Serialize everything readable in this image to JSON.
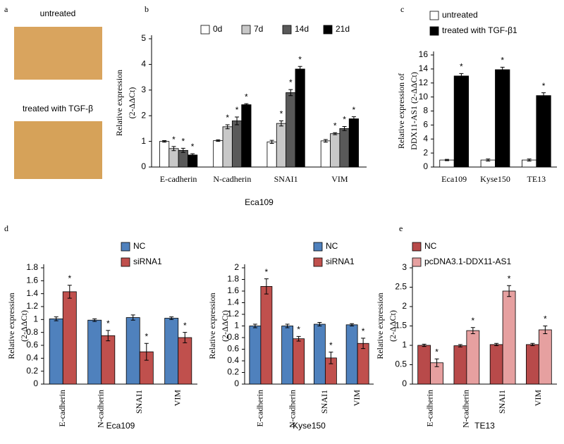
{
  "image_panel": {
    "label": "a",
    "captions": [
      "untreated",
      "treated with TGF-β"
    ]
  },
  "chart_data": [
    {
      "type": "bar",
      "label": "b",
      "ylabel": "Relative expression",
      "ylabel_unit": "(2-ΔΔCt)",
      "xlabel": "Eca109",
      "categories": [
        "E-cadherin",
        "N-cadherin",
        "SNAI1",
        "VIM"
      ],
      "series": [
        {
          "name": "0d",
          "color": "#ffffff",
          "values": [
            1.0,
            1.03,
            0.98,
            1.02
          ],
          "error": [
            0.03,
            0.03,
            0.06,
            0.05
          ]
        },
        {
          "name": "7d",
          "color": "#c8c8c8",
          "values": [
            0.72,
            1.57,
            1.7,
            1.3
          ],
          "error": [
            0.08,
            0.08,
            0.1,
            0.04
          ],
          "significance": [
            "*",
            "*",
            "*",
            "*"
          ]
        },
        {
          "name": "14d",
          "color": "#595959",
          "values": [
            0.65,
            1.8,
            2.9,
            1.5
          ],
          "error": [
            0.08,
            0.15,
            0.12,
            0.08
          ],
          "significance": [
            "*",
            "*",
            "*",
            "*"
          ]
        },
        {
          "name": "21d",
          "color": "#000000",
          "values": [
            0.47,
            2.43,
            3.82,
            1.88
          ],
          "error": [
            0.05,
            0.04,
            0.1,
            0.08
          ],
          "significance": [
            "*",
            "*",
            "*",
            "*"
          ]
        }
      ],
      "ylim": [
        0,
        5
      ],
      "yticks": [
        0,
        1,
        2,
        3,
        4,
        5
      ]
    },
    {
      "type": "bar",
      "label": "c",
      "ylabel": "Relative expression of",
      "ylabel_unit": "DDX11-AS1 (2-ΔΔCt)",
      "categories": [
        "Eca109",
        "Kyse150",
        "TE13"
      ],
      "series": [
        {
          "name": "untreated",
          "color": "#ffffff",
          "values": [
            1.0,
            1.0,
            1.0
          ],
          "error": [
            0.1,
            0.15,
            0.15
          ]
        },
        {
          "name": "treated with TGF-β1",
          "color": "#000000",
          "values": [
            13.0,
            13.9,
            10.2
          ],
          "error": [
            0.35,
            0.35,
            0.4
          ],
          "significance": [
            "*",
            "*",
            "*"
          ]
        }
      ],
      "ylim": [
        0,
        16
      ],
      "yticks": [
        0,
        2,
        4,
        6,
        8,
        10,
        12,
        14,
        16
      ]
    },
    {
      "type": "bar",
      "label": "d",
      "ylabel": "Relative expression",
      "ylabel_unit": "(2-ΔΔCt)",
      "xlabel": "Eca109",
      "categories": [
        "E-cadherin",
        "N-cadherin",
        "SNAI1",
        "VIM"
      ],
      "series": [
        {
          "name": "NC",
          "color": "#4f81bd",
          "values": [
            1.01,
            0.99,
            1.03,
            1.02
          ],
          "error": [
            0.03,
            0.02,
            0.04,
            0.02
          ]
        },
        {
          "name": "siRNA1",
          "color": "#c0504d",
          "values": [
            1.43,
            0.75,
            0.5,
            0.72
          ],
          "error": [
            0.1,
            0.08,
            0.13,
            0.08
          ],
          "significance": [
            "*",
            "*",
            "*",
            "*"
          ]
        }
      ],
      "ylim": [
        0,
        1.8
      ],
      "yticks": [
        0,
        0.2,
        0.4,
        0.6,
        0.8,
        1,
        1.2,
        1.4,
        1.6,
        1.8
      ]
    },
    {
      "type": "bar",
      "ylabel": "Relative expression",
      "ylabel_unit": "(2-ΔΔCt)",
      "xlabel": "Kyse150",
      "categories": [
        "E-cadherin",
        "N-cadherin",
        "SNAI1",
        "VIM"
      ],
      "series": [
        {
          "name": "NC",
          "color": "#4f81bd",
          "values": [
            1.0,
            1.0,
            1.03,
            1.02
          ],
          "error": [
            0.03,
            0.03,
            0.03,
            0.02
          ]
        },
        {
          "name": "siRNA1",
          "color": "#c0504d",
          "values": [
            1.68,
            0.78,
            0.45,
            0.7
          ],
          "error": [
            0.13,
            0.04,
            0.1,
            0.09
          ],
          "significance": [
            "*",
            "*",
            "*",
            "*"
          ]
        }
      ],
      "ylim": [
        0,
        2
      ],
      "yticks": [
        0,
        0.2,
        0.4,
        0.6,
        0.8,
        1,
        1.2,
        1.4,
        1.6,
        1.8,
        2
      ]
    },
    {
      "type": "bar",
      "label": "e",
      "ylabel": "Relative expression",
      "ylabel_unit": "(2-ΔΔCt)",
      "xlabel": "TE13",
      "categories": [
        "E-cadherin",
        "N-cadherin",
        "SNAI1",
        "VIM"
      ],
      "series": [
        {
          "name": "NC",
          "color": "#b84a4a",
          "values": [
            1.0,
            0.99,
            1.02,
            1.02
          ],
          "error": [
            0.03,
            0.03,
            0.03,
            0.03
          ]
        },
        {
          "name": "pcDNA3.1-DDX11-AS1",
          "color": "#e6a0a0",
          "values": [
            0.55,
            1.38,
            2.4,
            1.4
          ],
          "error": [
            0.1,
            0.08,
            0.14,
            0.1
          ],
          "significance": [
            "*",
            "*",
            "*",
            "*"
          ]
        }
      ],
      "ylim": [
        0,
        3
      ],
      "yticks": [
        0,
        0.5,
        1,
        1.5,
        2,
        2.5,
        3
      ]
    }
  ]
}
